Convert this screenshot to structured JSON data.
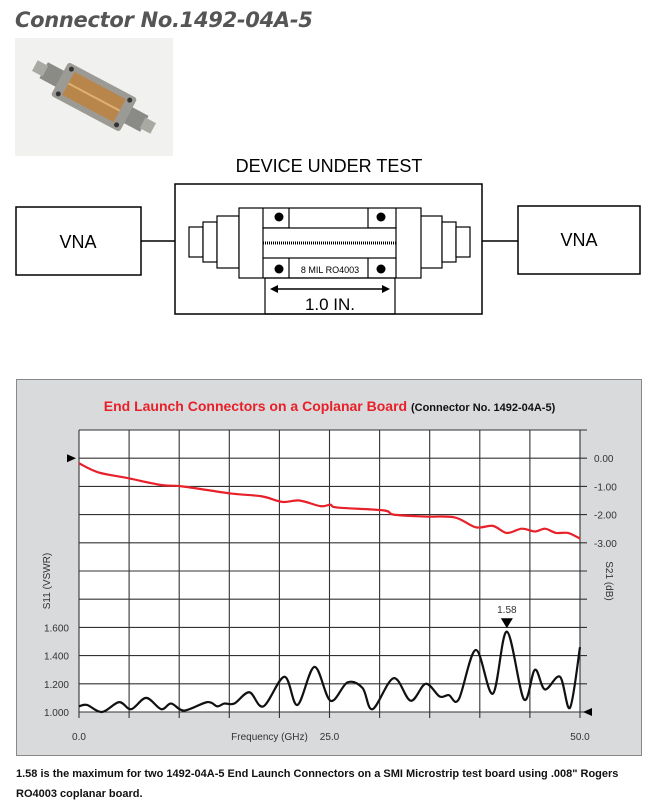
{
  "page_title": "Connector No.1492-04A-5",
  "diagram": {
    "heading": "DEVICE UNDER TEST",
    "left_box": "VNA",
    "right_box": "VNA",
    "board_label": "8 MIL RO4003",
    "length_label": "1.0 IN."
  },
  "chart_data": {
    "type": "line",
    "title": "End Launch Connectors on a Coplanar Board",
    "subtitle": "(Connector No. 1492-04A-5)",
    "xlabel": "Frequency (GHz)",
    "ylabel_left": "S11 (VSWR)",
    "ylabel_right": "S21 (dB)",
    "xlim": [
      0,
      50
    ],
    "x_ticks": [
      "0.0",
      "25.0",
      "50.0"
    ],
    "x_tick_values": [
      0,
      25,
      50
    ],
    "ylim_left": [
      1.0,
      3.0
    ],
    "y_ticks_left": [
      "1.000",
      "1.200",
      "1.400",
      "1.600"
    ],
    "y_tick_values_left": [
      1.0,
      1.2,
      1.4,
      1.6
    ],
    "ylim_right": [
      -9,
      1
    ],
    "y_ticks_right": [
      "0.00",
      "-1.00",
      "-2.00",
      "-3.00"
    ],
    "y_tick_values_right": [
      0,
      -1,
      -2,
      -3
    ],
    "grid": true,
    "annotation": {
      "label": "1.58",
      "x": 42.7,
      "y": 1.58
    },
    "series": [
      {
        "name": "S21",
        "axis": "right",
        "color": "#e8202a",
        "x": [
          0,
          1.9,
          4.8,
          8.2,
          10.3,
          15.1,
          18.2,
          20.3,
          22.0,
          24.1,
          25.1,
          25.8,
          30.4,
          31.4,
          34.6,
          37.5,
          39.6,
          41.3,
          42.7,
          44.2,
          45.5,
          46.5,
          47.6,
          48.8,
          50
        ],
        "y": [
          -0.18,
          -0.5,
          -0.7,
          -0.95,
          -1.0,
          -1.25,
          -1.35,
          -1.55,
          -1.5,
          -1.7,
          -1.65,
          -1.75,
          -1.85,
          -2.0,
          -2.07,
          -2.1,
          -2.45,
          -2.4,
          -2.65,
          -2.5,
          -2.6,
          -2.5,
          -2.65,
          -2.65,
          -2.85
        ]
      },
      {
        "name": "S11",
        "axis": "left",
        "color": "#111111",
        "x": [
          0,
          0.8,
          2.3,
          4.0,
          5.2,
          6.7,
          8.2,
          9.2,
          10.5,
          12.8,
          13.8,
          14.5,
          15.5,
          17.0,
          18.4,
          20.5,
          21.8,
          23.5,
          25.1,
          26.8,
          28.3,
          29.3,
          31.4,
          33.1,
          34.6,
          36.0,
          36.9,
          37.9,
          39.6,
          41.3,
          42.7,
          44.4,
          45.5,
          46.5,
          48.0,
          49.0,
          50
        ],
        "y": [
          1.04,
          1.05,
          1.0,
          1.07,
          1.02,
          1.1,
          1.02,
          1.06,
          1.01,
          1.07,
          1.04,
          1.06,
          1.06,
          1.14,
          1.04,
          1.25,
          1.05,
          1.32,
          1.08,
          1.21,
          1.17,
          1.02,
          1.24,
          1.08,
          1.2,
          1.11,
          1.12,
          1.09,
          1.44,
          1.13,
          1.57,
          1.09,
          1.3,
          1.16,
          1.25,
          1.03,
          1.46
        ]
      }
    ]
  },
  "caption": "1.58 is the maximum for two 1492-04A-5 End Launch Connectors on a SMI Microstrip test board using .008\" Rogers RO4003 coplanar board.",
  "colors": {
    "panel": "#d9dadb",
    "s21": "#e8202a",
    "s11": "#111111"
  }
}
